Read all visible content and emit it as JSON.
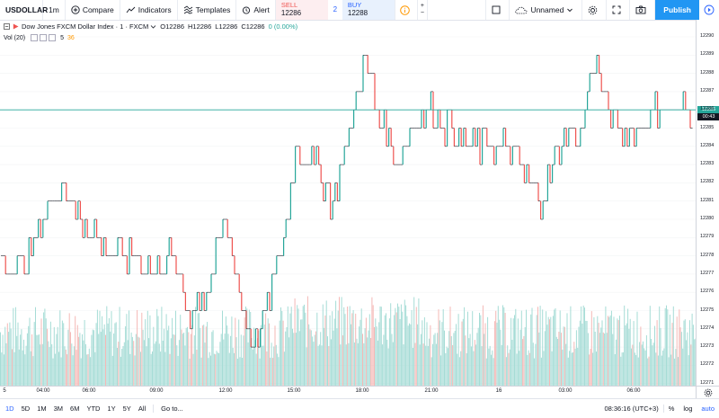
{
  "toolbar": {
    "symbol": "USDOLLAR",
    "interval": "1m",
    "compare_label": "Compare",
    "indicators_label": "Indicators",
    "templates_label": "Templates",
    "alert_label": "Alert",
    "sell_label": "SELL",
    "sell_price": "12286",
    "spread": "2",
    "buy_label": "BUY",
    "buy_price": "12288",
    "layout_name": "Unnamed",
    "publish_label": "Publish"
  },
  "legend": {
    "title": "Dow Jones FXCM Dollar Index · 1 · FXCM",
    "open": "O12286",
    "high": "H12286",
    "low": "L12286",
    "close": "C12286",
    "change": "0 (0.00%)",
    "volume_label": "Vol (20)",
    "volume_value1": "5",
    "volume_value2": "36"
  },
  "price_scale": {
    "labels": [
      "12290",
      "12289",
      "12288",
      "12287",
      "12286",
      "12285",
      "12284",
      "12283",
      "12282",
      "12281",
      "12280",
      "12279",
      "12278",
      "12277",
      "12276",
      "12275",
      "12274",
      "12273",
      "12272",
      "12271"
    ],
    "current_price": "12286",
    "countdown": "00:43"
  },
  "time_axis": {
    "labels": [
      "5",
      "04:00",
      "06:00",
      "09:00",
      "12:00",
      "15:00",
      "18:00",
      "21:00",
      "16",
      "03:00",
      "06:00"
    ]
  },
  "bottom_bar": {
    "timeframes": [
      "1D",
      "5D",
      "1M",
      "3M",
      "6M",
      "YTD",
      "1Y",
      "5Y",
      "All"
    ],
    "active_timeframe": "1D",
    "goto_label": "Go to...",
    "clock": "08:36:16 (UTC+3)",
    "percent_label": "%",
    "log_label": "log",
    "auto_label": "auto"
  },
  "colors": {
    "up": "#26a69a",
    "down": "#ef5350",
    "accent": "#2962ff",
    "publish": "#2196f3"
  }
}
